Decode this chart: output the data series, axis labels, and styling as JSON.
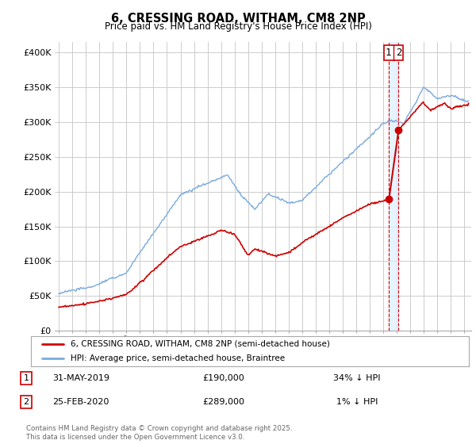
{
  "title": "6, CRESSING ROAD, WITHAM, CM8 2NP",
  "subtitle": "Price paid vs. HM Land Registry's House Price Index (HPI)",
  "ylabel_ticks": [
    "£0",
    "£50K",
    "£100K",
    "£150K",
    "£200K",
    "£250K",
    "£300K",
    "£350K",
    "£400K"
  ],
  "ytick_values": [
    0,
    50000,
    100000,
    150000,
    200000,
    250000,
    300000,
    350000,
    400000
  ],
  "ylim": [
    0,
    415000
  ],
  "xlim_start": 1994.7,
  "xlim_end": 2025.5,
  "sale1": {
    "date": "31-MAY-2019",
    "price": 190000,
    "label": "1",
    "x": 2019.42,
    "pct": "34% ↓ HPI"
  },
  "sale2": {
    "date": "25-FEB-2020",
    "price": 289000,
    "label": "2",
    "x": 2020.13,
    "pct": "1% ↓ HPI"
  },
  "legend_house": "6, CRESSING ROAD, WITHAM, CM8 2NP (semi-detached house)",
  "legend_hpi": "HPI: Average price, semi-detached house, Braintree",
  "footer": "Contains HM Land Registry data © Crown copyright and database right 2025.\nThis data is licensed under the Open Government Licence v3.0.",
  "house_color": "#cc0000",
  "hpi_color": "#7aaadd",
  "dashed_color": "#cc0000",
  "shade_color": "#ddeeff",
  "bg_color": "#ffffff",
  "grid_color": "#cccccc"
}
